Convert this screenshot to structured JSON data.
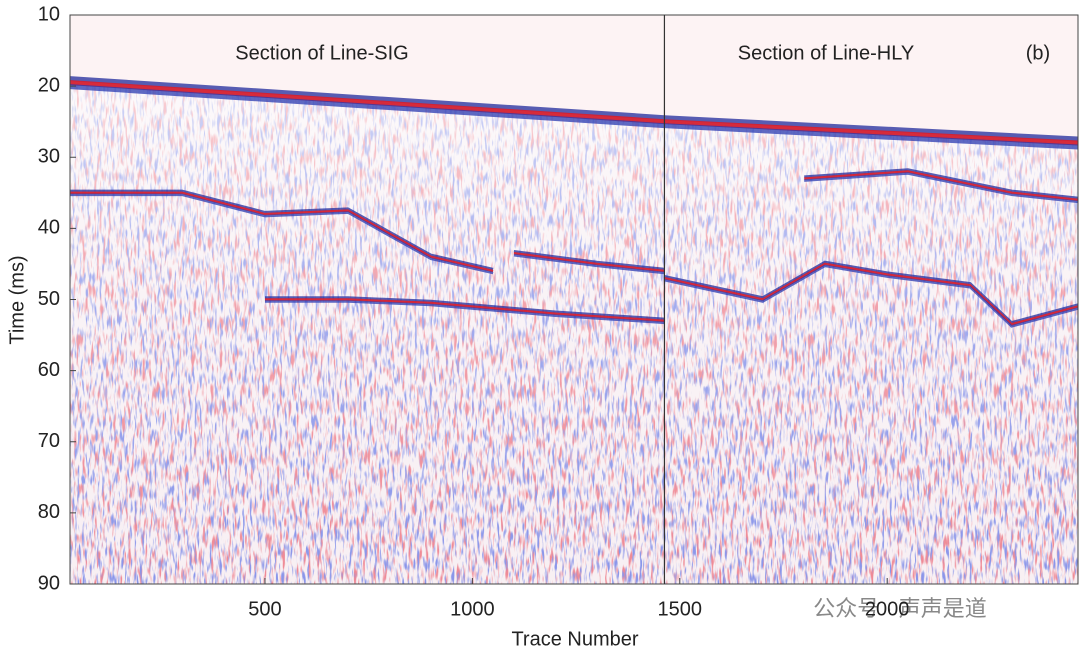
{
  "chart_data": {
    "type": "seismic",
    "ylabel": "Time (ms)",
    "xlabel": "Trace Number",
    "annotations": [
      "Section of Line-SIG",
      "Section of Line-HLY",
      "(b)"
    ],
    "watermark": "公众号 · 声声是道",
    "xlim": [
      30,
      2460
    ],
    "xticks": [
      500,
      1000,
      1500,
      2000
    ],
    "ylim": [
      90,
      10
    ],
    "yticks": [
      10,
      20,
      30,
      40,
      50,
      60,
      70,
      80,
      90
    ],
    "divider_x": 1463,
    "horizons": [
      {
        "x": [
          30,
          1463
        ],
        "y": [
          19.5,
          25
        ]
      },
      {
        "x": [
          1463,
          2460
        ],
        "y": [
          25,
          28
        ]
      },
      {
        "x": [
          30,
          300,
          500,
          700,
          900,
          1050
        ],
        "y": [
          35,
          35,
          38,
          37.5,
          44,
          46
        ]
      },
      {
        "x": [
          500,
          700,
          900,
          1200,
          1463
        ],
        "y": [
          50,
          50,
          50.5,
          52,
          53
        ]
      },
      {
        "x": [
          1100,
          1300,
          1463
        ],
        "y": [
          43.5,
          45,
          46
        ]
      },
      {
        "x": [
          1463,
          1700,
          1850,
          2000,
          2200,
          2300,
          2460
        ],
        "y": [
          47,
          50,
          45,
          46.5,
          48,
          53.5,
          51
        ]
      },
      {
        "x": [
          1800,
          2050,
          2300,
          2460
        ],
        "y": [
          33,
          32,
          35,
          36
        ]
      }
    ]
  }
}
